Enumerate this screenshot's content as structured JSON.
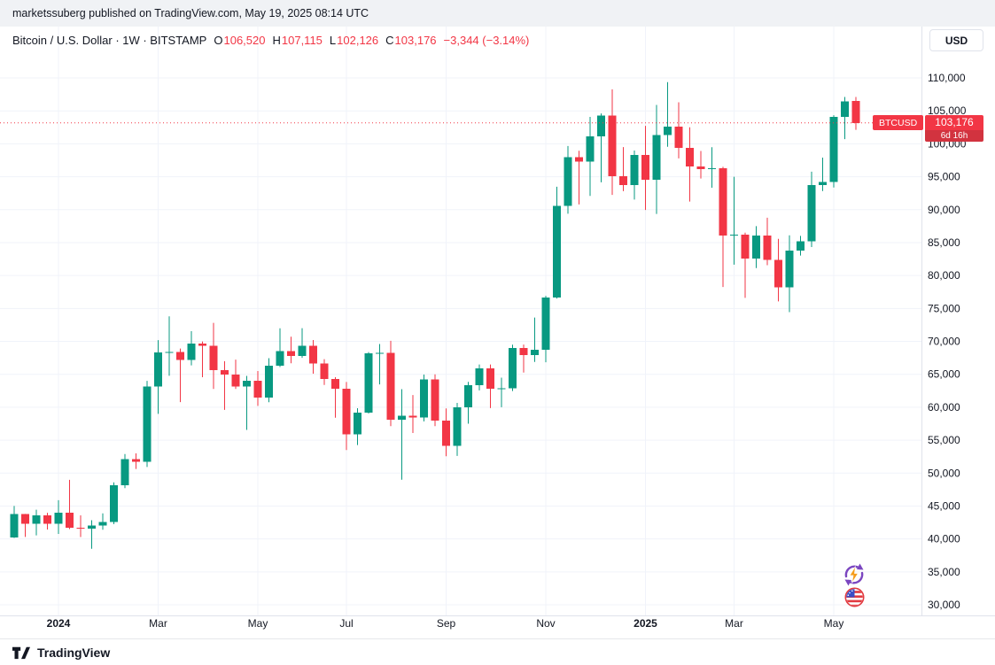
{
  "banner": {
    "text": "marketssuberg published on TradingView.com, May 19, 2025 08:14 UTC"
  },
  "header": {
    "symbol_title": "Bitcoin / U.S. Dollar · 1W · BITSTAMP",
    "ohlc": [
      {
        "label": "O",
        "value": "106,520"
      },
      {
        "label": "H",
        "value": "107,115"
      },
      {
        "label": "L",
        "value": "102,126"
      },
      {
        "label": "C",
        "value": "103,176"
      }
    ],
    "change": "−3,344 (−3.14%)",
    "currency_button": "USD"
  },
  "price_label": {
    "symbol": "BTCUSD",
    "price": "103,176",
    "countdown": "6d 16h"
  },
  "footer": {
    "brand": "TradingView"
  },
  "colors": {
    "up": "#089981",
    "down": "#f23645",
    "grid": "#f0f3fa",
    "axis_border": "#e0e3eb",
    "text": "#131722",
    "last_price_line": "#f23645"
  },
  "chart_data": {
    "type": "candlestick",
    "title": "Bitcoin / U.S. Dollar",
    "ticker": "BTCUSD",
    "interval": "1W",
    "exchange": "BITSTAMP",
    "last_price": 103176,
    "y_axis": {
      "min": 30000,
      "max": 110000,
      "tick_step": 5000,
      "tick_labels": [
        "110,000",
        "105,000",
        "100,000",
        "95,000",
        "90,000",
        "85,000",
        "80,000",
        "75,000",
        "70,000",
        "65,000",
        "60,000",
        "55,000",
        "50,000",
        "45,000",
        "40,000",
        "35,000",
        "30,000"
      ]
    },
    "x_ticks": [
      {
        "index": 4,
        "label": "2024",
        "bold": true
      },
      {
        "index": 13,
        "label": "Mar"
      },
      {
        "index": 22,
        "label": "May"
      },
      {
        "index": 30,
        "label": "Jul"
      },
      {
        "index": 39,
        "label": "Sep"
      },
      {
        "index": 48,
        "label": "Nov"
      },
      {
        "index": 57,
        "label": "2025",
        "bold": true
      },
      {
        "index": 65,
        "label": "Mar"
      },
      {
        "index": 74,
        "label": "May"
      }
    ],
    "candles": [
      [
        40200,
        45010,
        40150,
        43790
      ],
      [
        43790,
        43800,
        40300,
        42280
      ],
      [
        42280,
        44430,
        40540,
        43580
      ],
      [
        43580,
        43960,
        41430,
        42280
      ],
      [
        42280,
        45880,
        40750,
        43950
      ],
      [
        43950,
        48970,
        41500,
        41720
      ],
      [
        41720,
        43580,
        40280,
        41580
      ],
      [
        41580,
        42840,
        38500,
        42030
      ],
      [
        42030,
        43890,
        41400,
        42580
      ],
      [
        42580,
        48590,
        42260,
        48120
      ],
      [
        48120,
        52890,
        47710,
        52120
      ],
      [
        52120,
        52990,
        50620,
        51730
      ],
      [
        51730,
        64000,
        50930,
        63170
      ],
      [
        63170,
        70180,
        59000,
        68300
      ],
      [
        68300,
        73790,
        64780,
        68390
      ],
      [
        68390,
        68900,
        60780,
        67210
      ],
      [
        67210,
        71550,
        66350,
        69650
      ],
      [
        69650,
        69990,
        64550,
        69360
      ],
      [
        69360,
        72800,
        62770,
        65650
      ],
      [
        65650,
        67000,
        59600,
        64940
      ],
      [
        64940,
        67230,
        62780,
        63110
      ],
      [
        63110,
        64750,
        56550,
        64050
      ],
      [
        64050,
        65500,
        60200,
        61450
      ],
      [
        61450,
        67450,
        60750,
        66270
      ],
      [
        66270,
        71980,
        66100,
        68550
      ],
      [
        68550,
        70700,
        66670,
        67780
      ],
      [
        67780,
        72000,
        67500,
        69310
      ],
      [
        69310,
        70200,
        65100,
        66670
      ],
      [
        66670,
        67300,
        63380,
        64260
      ],
      [
        64260,
        64550,
        58400,
        62780
      ],
      [
        62780,
        63840,
        53500,
        55850
      ],
      [
        55850,
        59850,
        54260,
        59200
      ],
      [
        59200,
        68370,
        59050,
        68160
      ],
      [
        68160,
        69600,
        63460,
        68250
      ],
      [
        68250,
        70080,
        57130,
        58120
      ],
      [
        58120,
        62740,
        49000,
        58720
      ],
      [
        58720,
        61850,
        56080,
        58440
      ],
      [
        58440,
        64950,
        57850,
        64250
      ],
      [
        64250,
        65000,
        57130,
        57970
      ],
      [
        57970,
        59820,
        52550,
        54160
      ],
      [
        54160,
        60660,
        52600,
        59990
      ],
      [
        59990,
        63850,
        57490,
        63350
      ],
      [
        63350,
        66480,
        62550,
        65880
      ],
      [
        65880,
        66490,
        59860,
        62820
      ],
      [
        62820,
        64480,
        60000,
        62850
      ],
      [
        62850,
        69500,
        62450,
        69000
      ],
      [
        69000,
        69520,
        65260,
        67930
      ],
      [
        67930,
        73620,
        66880,
        68740
      ],
      [
        68740,
        76900,
        66830,
        76680
      ],
      [
        76680,
        93480,
        76500,
        90580
      ],
      [
        90580,
        99660,
        89380,
        97970
      ],
      [
        97970,
        98940,
        90790,
        97280
      ],
      [
        97280,
        104090,
        92090,
        101110
      ],
      [
        101110,
        104600,
        94150,
        104300
      ],
      [
        104300,
        108270,
        92240,
        95100
      ],
      [
        95100,
        99500,
        92800,
        93720
      ],
      [
        93720,
        98980,
        91530,
        98310
      ],
      [
        98310,
        102720,
        89950,
        94570
      ],
      [
        94570,
        105900,
        89340,
        101330
      ],
      [
        101330,
        109360,
        99550,
        102600
      ],
      [
        102600,
        106300,
        97780,
        99400
      ],
      [
        99400,
        102500,
        91230,
        96560
      ],
      [
        96560,
        98900,
        94720,
        96120
      ],
      [
        96120,
        99475,
        93330,
        96270
      ],
      [
        96270,
        96500,
        78260,
        86050
      ],
      [
        86050,
        95000,
        81650,
        86220
      ],
      [
        86220,
        86500,
        76610,
        82580
      ],
      [
        82580,
        87490,
        81130,
        86100
      ],
      [
        86100,
        88770,
        81560,
        82380
      ],
      [
        82380,
        85560,
        76060,
        78210
      ],
      [
        78210,
        86100,
        74440,
        83750
      ],
      [
        83750,
        86020,
        83030,
        85170
      ],
      [
        85170,
        95770,
        84320,
        93750
      ],
      [
        93750,
        97900,
        92830,
        94220
      ],
      [
        94220,
        104330,
        93360,
        104110
      ],
      [
        104110,
        107110,
        100700,
        106450
      ],
      [
        106520,
        107115,
        102126,
        103176
      ]
    ]
  }
}
